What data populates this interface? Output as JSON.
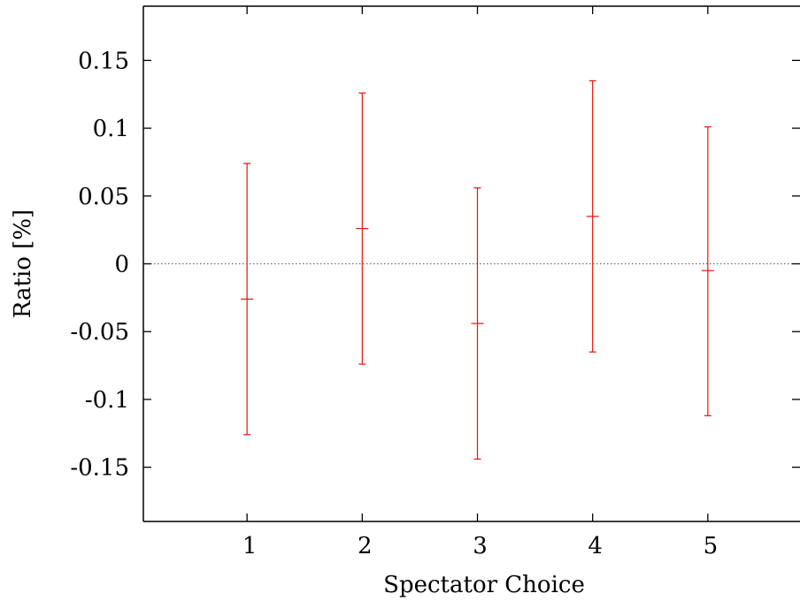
{
  "chart_data": {
    "type": "scatter",
    "title": "",
    "xlabel": "Spectator Choice",
    "ylabel": "Ratio [%]",
    "xlim": [
      0.1,
      5.8
    ],
    "ylim": [
      -0.19,
      0.19
    ],
    "x_ticks": [
      1,
      2,
      3,
      4,
      5
    ],
    "x_tick_labels": [
      "1",
      "2",
      "3",
      "4",
      "5"
    ],
    "y_ticks": [
      0.15,
      0.1,
      0.05,
      0,
      -0.05,
      -0.1,
      -0.15
    ],
    "y_tick_labels": [
      "0.15",
      "0.1",
      "0.05",
      "0",
      "-0.05",
      "-0.1",
      "-0.15"
    ],
    "reference_line": 0,
    "grid": false,
    "series": [
      {
        "color": "#e8140a",
        "points": [
          {
            "x": 1,
            "y": -0.026,
            "err_low": -0.126,
            "err_high": 0.074
          },
          {
            "x": 2,
            "y": 0.026,
            "err_low": -0.074,
            "err_high": 0.126
          },
          {
            "x": 3,
            "y": -0.044,
            "err_low": -0.144,
            "err_high": 0.056
          },
          {
            "x": 4,
            "y": 0.035,
            "err_low": -0.065,
            "err_high": 0.135
          },
          {
            "x": 5,
            "y": -0.005,
            "err_low": -0.112,
            "err_high": 0.101
          }
        ]
      }
    ]
  }
}
